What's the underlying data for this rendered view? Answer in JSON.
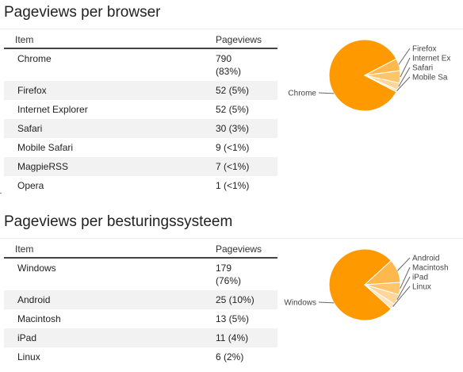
{
  "sections": [
    {
      "title": "Pageviews per browser",
      "columns": {
        "item": "Item",
        "pageviews": "Pageviews"
      },
      "rows": [
        {
          "item": "Chrome",
          "count": "790",
          "pct": "(83%)"
        },
        {
          "item": "Firefox",
          "count": "52 (5%)",
          "pct": ""
        },
        {
          "item": "Internet Explorer",
          "count": "52 (5%)",
          "pct": ""
        },
        {
          "item": "Safari",
          "count": "30 (3%)",
          "pct": ""
        },
        {
          "item": "Mobile Safari",
          "count": "9 (<1%)",
          "pct": ""
        },
        {
          "item": "MagpieRSS",
          "count": "7 (<1%)",
          "pct": ""
        },
        {
          "item": "Opera",
          "count": "1 (<1%)",
          "pct": ""
        }
      ]
    },
    {
      "title": "Pageviews per besturingssysteem",
      "columns": {
        "item": "Item",
        "pageviews": "Pageviews"
      },
      "rows": [
        {
          "item": "Windows",
          "count": "179",
          "pct": "(76%)"
        },
        {
          "item": "Android",
          "count": "25 (10%)",
          "pct": ""
        },
        {
          "item": "Macintosh",
          "count": "13 (5%)",
          "pct": ""
        },
        {
          "item": "iPad",
          "count": "11 (4%)",
          "pct": ""
        },
        {
          "item": "Linux",
          "count": "6 (2%)",
          "pct": ""
        }
      ]
    }
  ],
  "chart_data": [
    {
      "type": "pie",
      "title": "",
      "categories": [
        "Chrome",
        "Firefox",
        "Internet Explorer",
        "Safari",
        "Mobile Safari"
      ],
      "labels": [
        "Chrome",
        "Firefox",
        "Internet Ex",
        "Safari",
        "Mobile Sa"
      ],
      "values": [
        790,
        52,
        52,
        30,
        9
      ],
      "colors": [
        "#ff9900",
        "#ffb84d",
        "#ffc56b",
        "#ffd699",
        "#ffe5bf"
      ]
    },
    {
      "type": "pie",
      "title": "",
      "categories": [
        "Windows",
        "Android",
        "Macintosh",
        "iPad",
        "Linux"
      ],
      "labels": [
        "Windows",
        "Android",
        "Macintosh",
        "iPad",
        "Linux"
      ],
      "values": [
        179,
        25,
        13,
        11,
        6
      ],
      "colors": [
        "#ff9900",
        "#ffb84d",
        "#ffc56b",
        "#ffd699",
        "#ffe5bf"
      ]
    }
  ]
}
